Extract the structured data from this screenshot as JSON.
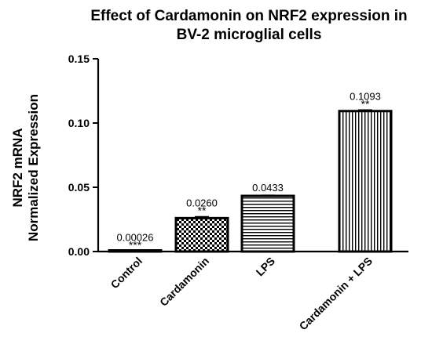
{
  "chart_data": {
    "type": "bar",
    "title_lines": [
      "Effect of Cardamonin on NRF2 expression in",
      "BV-2 microglial cells"
    ],
    "ylabel_lines": [
      "NRF2 mRNA",
      "Normalized Expression"
    ],
    "xlabel": "",
    "ylim": [
      0,
      0.15
    ],
    "yticks": [
      0.0,
      0.05,
      0.1,
      0.15
    ],
    "ytick_labels": [
      "0.00",
      "0.05",
      "0.10",
      "0.15"
    ],
    "categories": [
      "Control",
      "Cardamonin",
      "LPS",
      "Cardamonin + LPS"
    ],
    "values": [
      0.00026,
      0.026,
      0.0433,
      0.1093
    ],
    "value_labels": [
      "0.00026",
      "0.0260",
      "0.0433",
      "0.1093"
    ],
    "error_bars": [
      0.0001,
      0.0011,
      0.0005,
      0.0009
    ],
    "significance": [
      "***",
      "**",
      "",
      "**"
    ],
    "fill_patterns": [
      "solid-white",
      "checkerboard",
      "horizontal-lines",
      "vertical-lines"
    ],
    "bar_color": "#000000",
    "grid": false,
    "legend": "none"
  }
}
